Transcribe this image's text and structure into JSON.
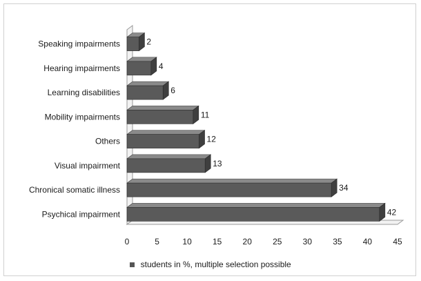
{
  "chart_data": {
    "type": "bar",
    "orientation": "horizontal",
    "style": "3d",
    "categories": [
      "Speaking impairments",
      "Hearing impairments",
      "Learning disabilities",
      "Mobility impairments",
      "Others",
      "Visual impairment",
      "Chronical somatic illness",
      "Psychical impairment"
    ],
    "series": [
      {
        "name": "students in %, multiple selection possible",
        "values": [
          2,
          4,
          6,
          11,
          12,
          13,
          34,
          42
        ],
        "color": "#555555"
      }
    ],
    "data_labels": [
      "2",
      "4",
      "6",
      "11",
      "12",
      "13",
      "34",
      "42"
    ],
    "xlim": [
      0,
      45
    ],
    "xticks": [
      0,
      5,
      10,
      15,
      20,
      25,
      30,
      35,
      40,
      45
    ],
    "xtick_labels": [
      "0",
      "5",
      "10",
      "15",
      "20",
      "25",
      "30",
      "35",
      "40",
      "45"
    ],
    "grid": false,
    "legend_position": "bottom"
  }
}
